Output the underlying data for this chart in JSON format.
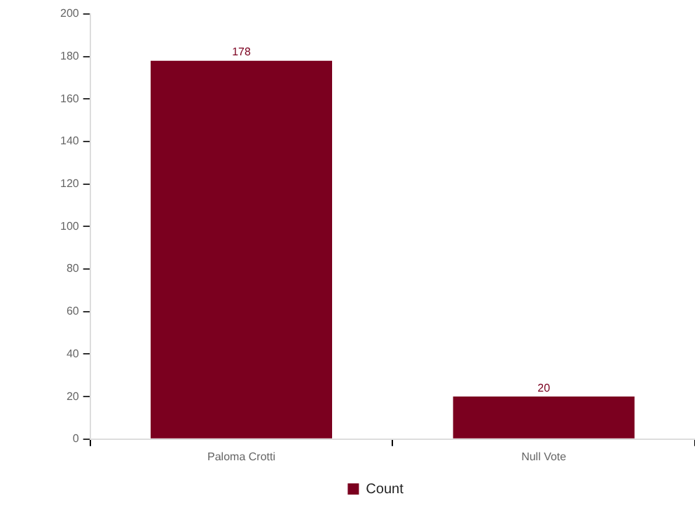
{
  "chart_data": {
    "type": "bar",
    "categories": [
      "Paloma Crotti",
      "Null Vote"
    ],
    "series": [
      {
        "name": "Count",
        "color": "#7b001f",
        "values": [
          178,
          20
        ]
      }
    ],
    "ylim": [
      0,
      200
    ],
    "yticks": [
      0,
      20,
      40,
      60,
      80,
      100,
      120,
      140,
      160,
      180,
      200
    ],
    "grid": false,
    "legend": "bottom",
    "data_labels": true
  }
}
